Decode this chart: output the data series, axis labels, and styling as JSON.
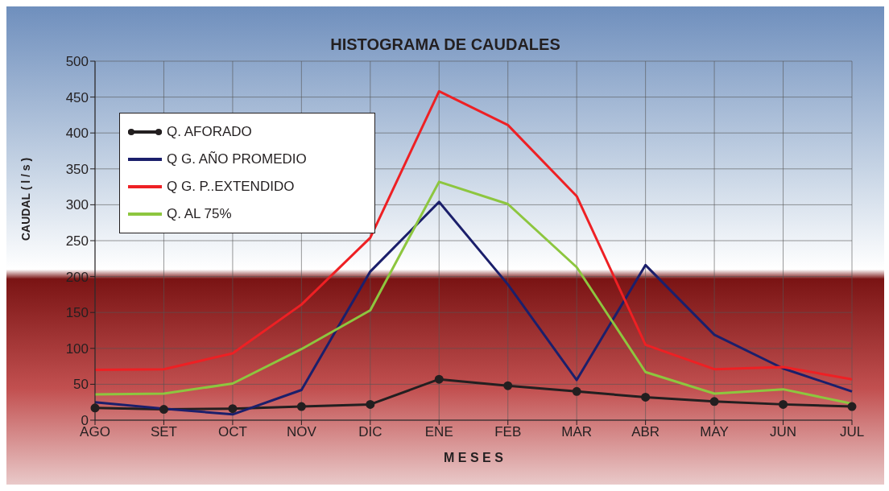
{
  "chart_data": {
    "type": "line",
    "title": "HISTOGRAMA DE CAUDALES",
    "xlabel": "M E S E S",
    "ylabel": "CAUDAL      ( l / s )",
    "categories": [
      "AGO",
      "SET",
      "OCT",
      "NOV",
      "DIC",
      "ENE",
      "FEB",
      "MAR",
      "ABR",
      "MAY",
      "JUN",
      "JUL"
    ],
    "series": [
      {
        "name": "Q. AFORADO",
        "color": "#231f20",
        "marker": "circle",
        "values": [
          17,
          15,
          16,
          19,
          22,
          57,
          48,
          40,
          32,
          26,
          22,
          19
        ]
      },
      {
        "name": "Q G. AÑO PROMEDIO",
        "color": "#1b1f6b",
        "marker": "none",
        "values": [
          25,
          16,
          8,
          42,
          207,
          304,
          189,
          56,
          216,
          119,
          72,
          40
        ]
      },
      {
        "name": "Q G. P..EXTENDIDO",
        "color": "#ee2024",
        "marker": "none",
        "values": [
          70,
          71,
          93,
          161,
          254,
          458,
          411,
          312,
          105,
          71,
          74,
          57
        ]
      },
      {
        "name": "Q. AL 75%",
        "color": "#8dc63f",
        "marker": "none",
        "values": [
          36,
          37,
          51,
          99,
          153,
          332,
          301,
          213,
          67,
          37,
          43,
          23
        ]
      }
    ],
    "ylim": [
      0,
      500
    ],
    "yticks": [
      0,
      50,
      100,
      150,
      200,
      250,
      300,
      350,
      400,
      450,
      500
    ],
    "grid": true,
    "legend": "top left"
  }
}
